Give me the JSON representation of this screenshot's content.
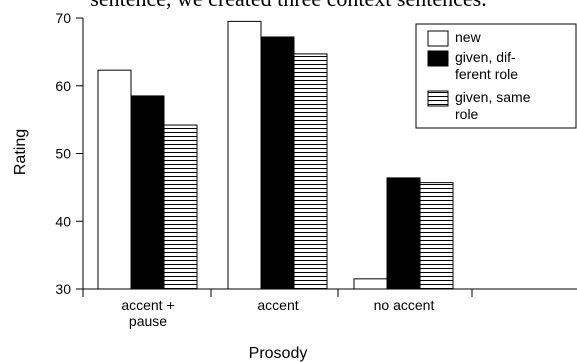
{
  "header_snippet": "sentence, we created three context sentences.",
  "chart_data": {
    "type": "bar",
    "categories": [
      [
        "accent +",
        "pause"
      ],
      [
        "accent"
      ],
      [
        "no accent"
      ]
    ],
    "series": [
      {
        "name": [
          "new"
        ],
        "values": [
          62.3,
          69.5,
          31.5
        ],
        "fill": "#ffffff",
        "pattern": "none"
      },
      {
        "name": [
          "given, dif-",
          "ferent role"
        ],
        "values": [
          58.5,
          67.2,
          46.4
        ],
        "fill": "#000000",
        "pattern": "none"
      },
      {
        "name": [
          "given, same",
          "role"
        ],
        "values": [
          54.2,
          64.7,
          45.7
        ],
        "fill": "#ffffff",
        "pattern": "horizontal-lines"
      }
    ],
    "title": "",
    "xlabel": "Prosody",
    "ylabel": "Rating",
    "ylim": [
      30,
      70
    ],
    "yticks": [
      30,
      40,
      50,
      60,
      70
    ],
    "grid": false,
    "legend": "top-right"
  }
}
